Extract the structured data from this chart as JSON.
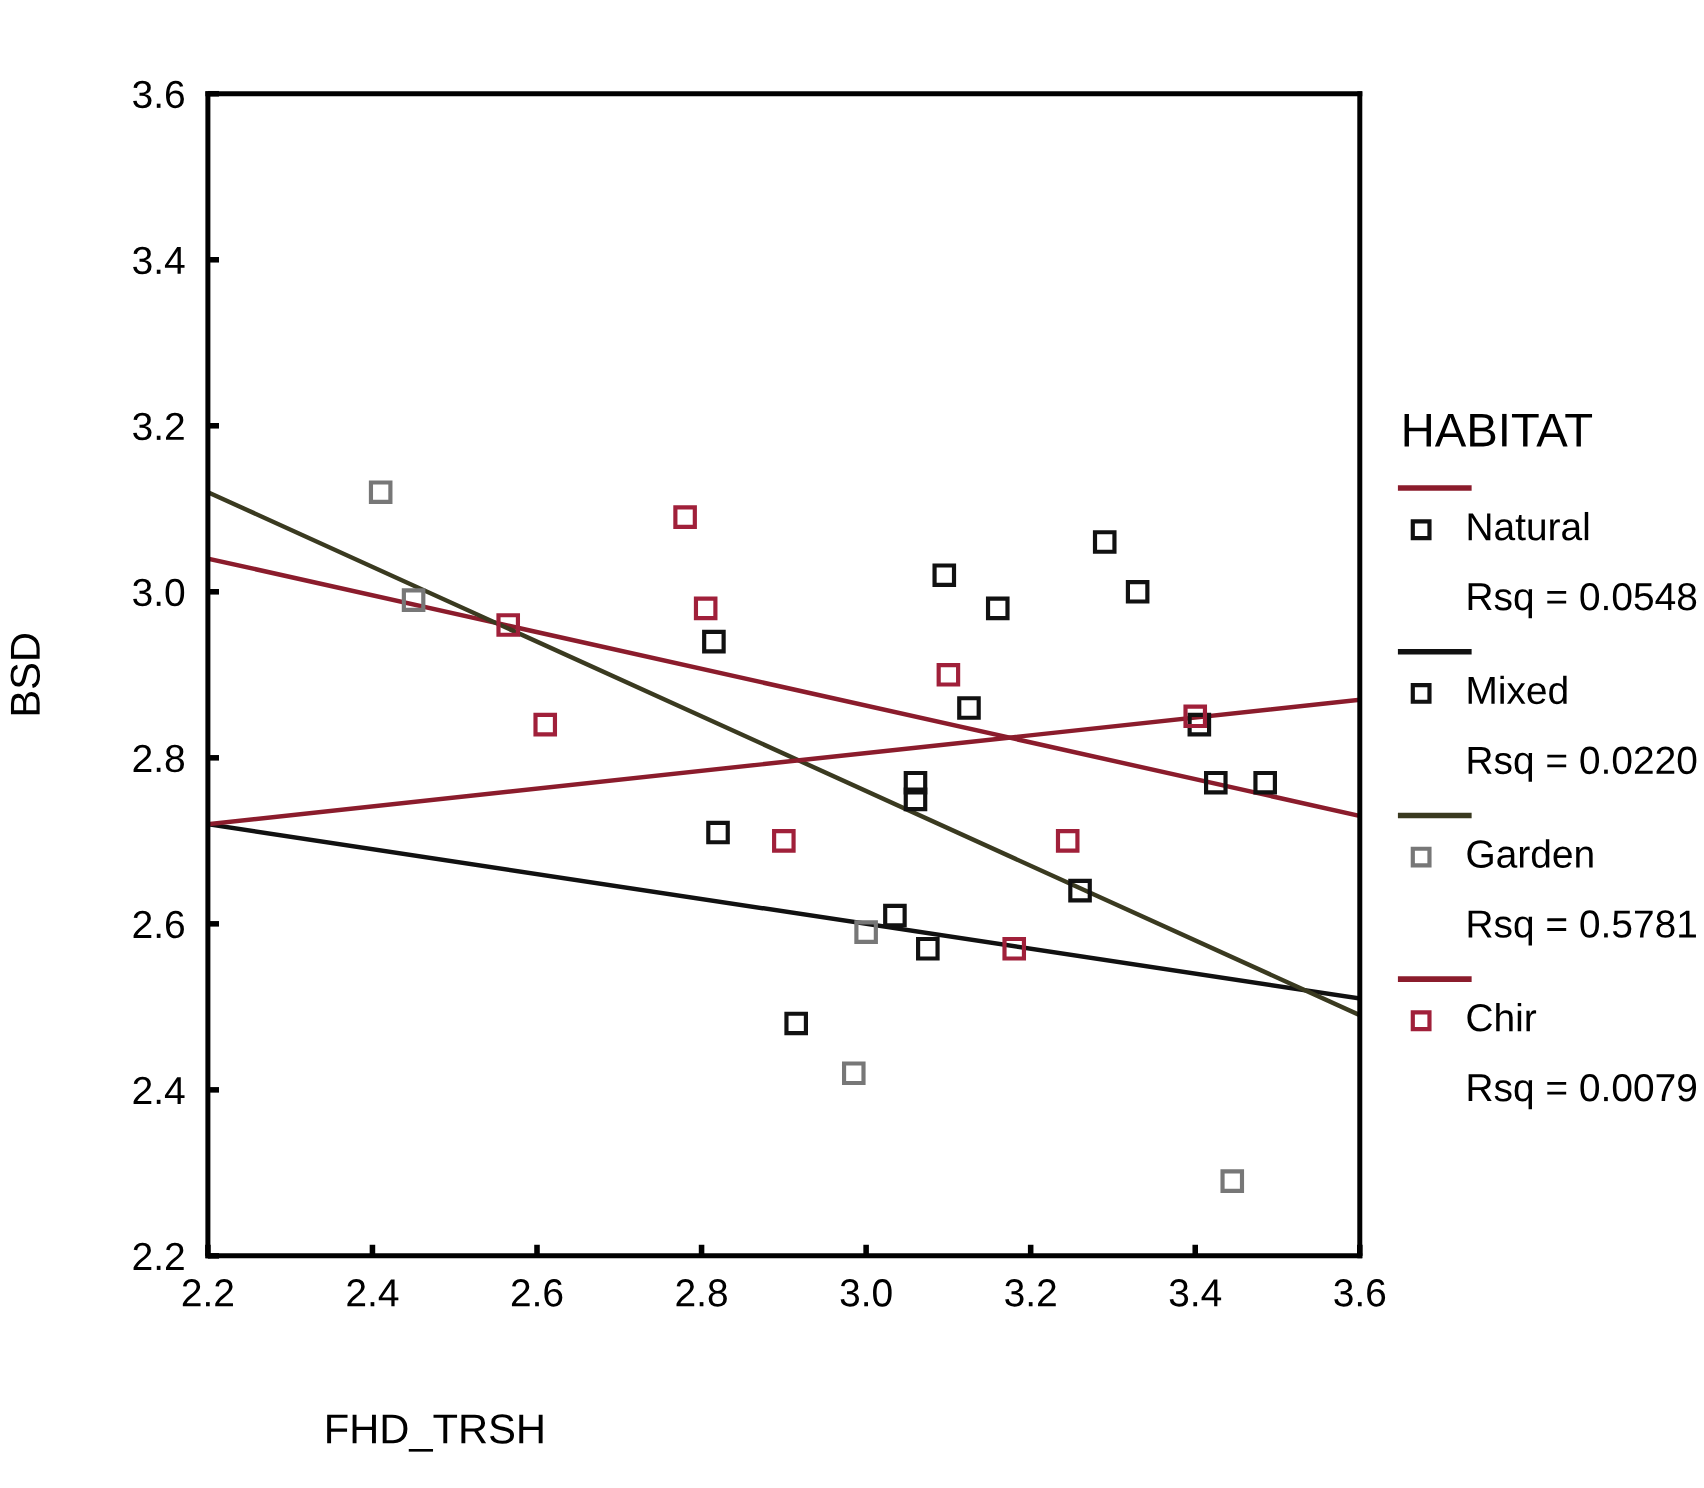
{
  "chart_data": {
    "type": "scatter",
    "xlabel": "FHD_TRSH",
    "ylabel": "BSD",
    "legend_title": "HABITAT",
    "legend": "right",
    "grid": false,
    "marker": "square",
    "xlim": [
      2.2,
      3.6
    ],
    "ylim": [
      2.2,
      3.6
    ],
    "xticks": [
      2.2,
      2.4,
      2.6,
      2.8,
      {
        "value": 3,
        "label": "3.0"
      },
      3.2,
      3.4,
      3.6
    ],
    "yticks": [
      2.2,
      2.4,
      2.6,
      2.8,
      {
        "value": 3,
        "label": "3.0"
      },
      3.2,
      3.4,
      3.6
    ],
    "series": [
      {
        "name": "Natural",
        "color": "#111111",
        "x": [
          2.815,
          3.095,
          3.16,
          3.29,
          3.33,
          3.125,
          3.425,
          3.485
        ],
        "values": [
          2.94,
          3.02,
          2.98,
          3.06,
          3.0,
          2.86,
          2.77,
          2.77
        ]
      },
      {
        "name": "Mixed",
        "color": "#111111",
        "x": [
          2.82,
          2.915,
          3.06,
          3.06,
          3.035,
          3.075,
          3.26,
          3.405
        ],
        "values": [
          2.71,
          2.48,
          2.77,
          2.75,
          2.61,
          2.57,
          2.64,
          2.84
        ]
      },
      {
        "name": "Garden",
        "color": "#777777",
        "x": [
          2.41,
          2.45,
          3.0,
          3.445,
          2.985
        ],
        "values": [
          3.12,
          2.99,
          2.59,
          2.29,
          2.42
        ]
      },
      {
        "name": "Chir",
        "color": "#a0203a",
        "x": [
          2.565,
          2.61,
          2.78,
          2.805,
          2.9,
          3.1,
          3.245,
          3.4,
          3.18
        ],
        "values": [
          2.96,
          2.84,
          3.09,
          2.98,
          2.7,
          2.9,
          2.7,
          2.85,
          2.57
        ]
      },
      {
        "type": "line",
        "color": "#8b1c2c",
        "marker": "none",
        "x": [
          2.2,
          3.6
        ],
        "values": [
          3.04,
          2.73
        ]
      },
      {
        "type": "line",
        "color": "#111111",
        "marker": "none",
        "x": [
          2.2,
          3.6
        ],
        "values": [
          2.72,
          2.51
        ]
      },
      {
        "type": "line",
        "color": "#3a3a20",
        "marker": "none",
        "x": [
          2.2,
          3.6
        ],
        "values": [
          3.12,
          2.49
        ]
      },
      {
        "type": "line",
        "color": "#8b1c2c",
        "marker": "none",
        "x": [
          2.2,
          3.6
        ],
        "values": [
          2.72,
          2.87
        ]
      }
    ],
    "annotations": [
      "Rsq = 0.0548",
      "Rsq = 0.0220",
      "Rsq = 0.5781",
      "Rsq = 0.0079"
    ]
  }
}
